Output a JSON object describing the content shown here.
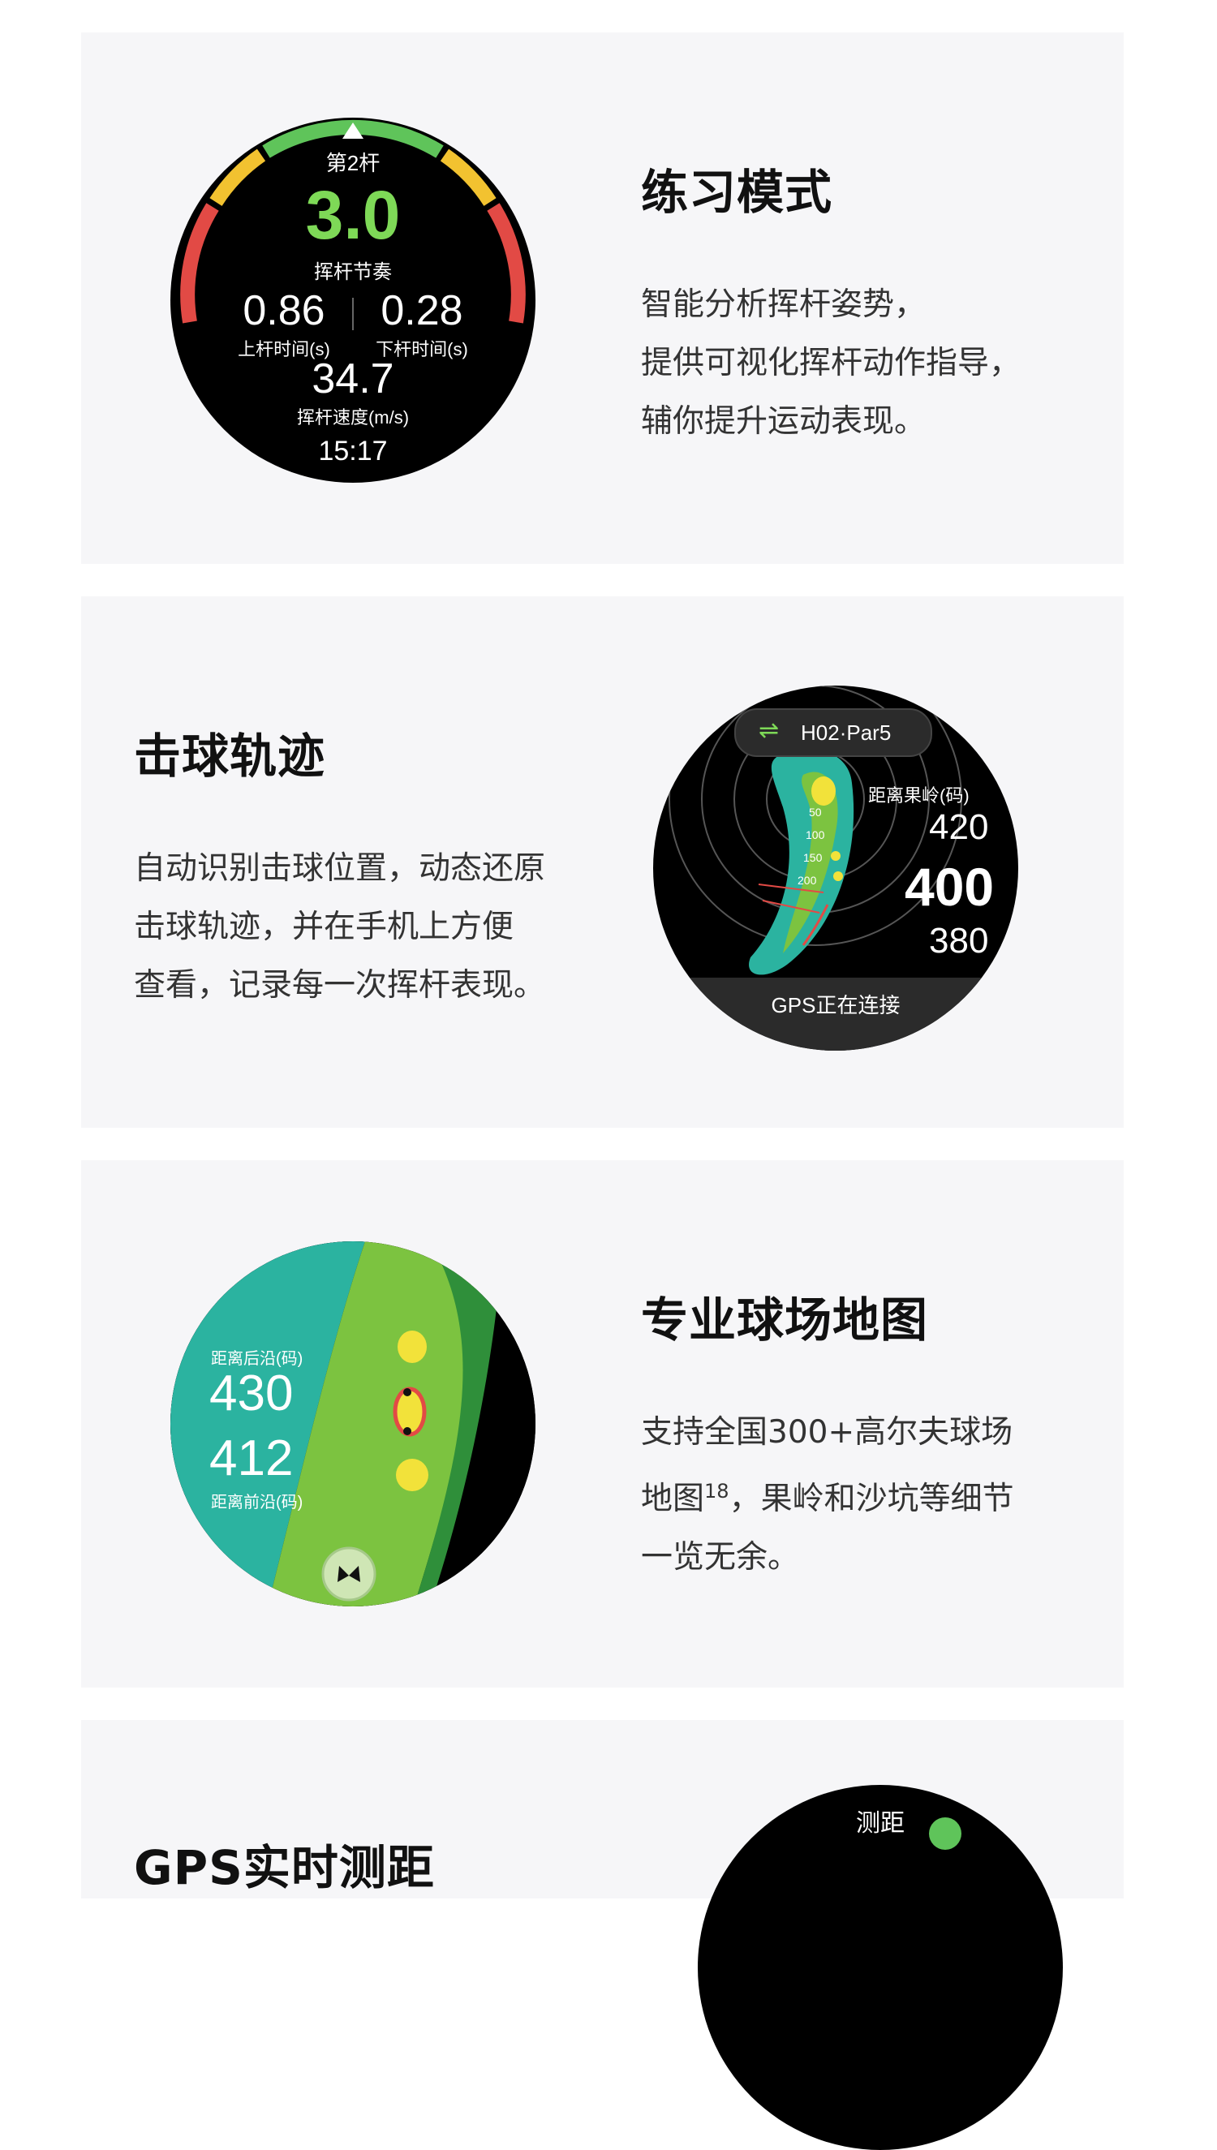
{
  "sections": [
    {
      "title": "练习模式",
      "desc": [
        "智能分析挥杆姿势，",
        "提供可视化挥杆动作指导，",
        "辅你提升运动表现。"
      ],
      "watch": {
        "stroke_label": "第2杆",
        "tempo_value": "3.0",
        "tempo_label": "挥杆节奏",
        "up_value": "0.86",
        "up_label": "上杆时间(s)",
        "down_value": "0.28",
        "down_label": "下杆时间(s)",
        "speed_value": "34.7",
        "speed_label": "挥杆速度(m/s)",
        "time": "15:17"
      }
    },
    {
      "title": "击球轨迹",
      "desc": [
        "自动识别击球位置，动态还原",
        "击球轨迹，并在手机上方便",
        "查看，记录每一次挥杆表现。"
      ],
      "watch": {
        "hole_label": "H02·Par5",
        "swap_icon": "⇌",
        "dist_label": "距离果岭(码)",
        "dist_far": "420",
        "dist_mid": "400",
        "dist_near": "380",
        "ring_50": "50",
        "ring_100": "100",
        "ring_150": "150",
        "ring_200": "200",
        "gps_status": "GPS正在连接"
      }
    },
    {
      "title": "专业球场地图",
      "desc_line1": "支持全国300+高尔夫球场",
      "desc_line2_pre": "地图",
      "desc_line2_sup": "18",
      "desc_line2_post": "，果岭和沙坑等细节",
      "desc_line3": "一览无余。",
      "watch": {
        "back_label": "距离后沿(码)",
        "back_value": "430",
        "front_value": "412",
        "front_label": "距离前沿(码)"
      }
    },
    {
      "title": "GPS实时测距",
      "watch_label": "测距"
    }
  ],
  "colors": {
    "card_bg": "#f6f6f8",
    "accent_green": "#7ed957",
    "arc_yellow": "#f2c230",
    "arc_red": "#e24a45",
    "arc_green": "#5fc45a",
    "teal": "#2bb3a0",
    "fairway": "#7cc340",
    "dark_green": "#2f8f3a"
  }
}
